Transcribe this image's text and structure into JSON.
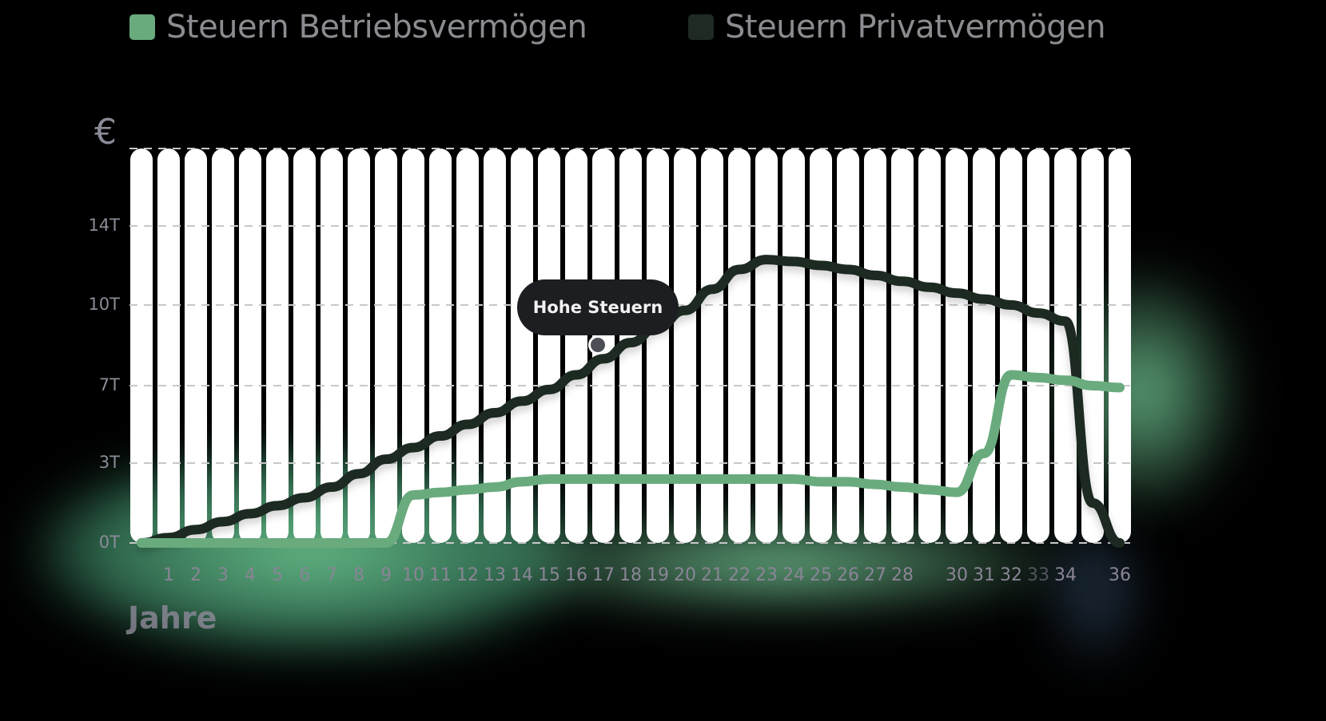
{
  "legend": {
    "items": [
      {
        "label": "Steuern Betriebsvermögen",
        "color": "#6aab7e"
      },
      {
        "label": "Steuern Privatvermögen",
        "color": "#1f2a22"
      }
    ]
  },
  "axis": {
    "y_unit": "€",
    "y_ticks": [
      "14T",
      "10T",
      "7T",
      "3T",
      "0T"
    ],
    "x_title": "Jahre",
    "x_ticks": [
      "1",
      "2",
      "3",
      "4",
      "5",
      "6",
      "7",
      "8",
      "9",
      "10",
      "11",
      "12",
      "13",
      "14",
      "15",
      "16",
      "17",
      "18",
      "19",
      "20",
      "21",
      "22",
      "23",
      "24",
      "25",
      "26",
      "27",
      "28",
      "",
      "30",
      "31",
      "32",
      "33",
      "34",
      "",
      "36"
    ]
  },
  "tooltip": {
    "label": "Hohe Steuern",
    "year": 17
  },
  "chart_data": {
    "type": "line",
    "title": "",
    "xlabel": "Jahre",
    "ylabel": "€",
    "legend_position": "top",
    "grid": true,
    "ylim": [
      0,
      17
    ],
    "y_tick_values": [
      0,
      3,
      7,
      10,
      14
    ],
    "y_tick_labels": [
      "0T",
      "3T",
      "7T",
      "10T",
      "14T"
    ],
    "x": [
      0,
      1,
      2,
      3,
      4,
      5,
      6,
      7,
      8,
      9,
      10,
      11,
      12,
      13,
      14,
      15,
      16,
      17,
      18,
      19,
      20,
      21,
      22,
      23,
      24,
      25,
      26,
      27,
      28,
      29,
      30,
      31,
      32,
      33,
      34,
      35,
      36
    ],
    "series": [
      {
        "name": "Steuern Betriebsvermögen",
        "color": "#6aab7e",
        "values": [
          0,
          0,
          0,
          0,
          0,
          0,
          0,
          0,
          0,
          0,
          1.8,
          1.9,
          2.0,
          2.1,
          2.3,
          2.4,
          2.4,
          2.4,
          2.4,
          2.4,
          2.4,
          2.4,
          2.4,
          2.4,
          2.4,
          2.3,
          2.3,
          2.2,
          2.1,
          2.0,
          1.9,
          3.5,
          7.4,
          7.3,
          7.2,
          7.0,
          6.9
        ]
      },
      {
        "name": "Steuern Privatvermögen",
        "color": "#1f2a22",
        "values": [
          0,
          0.2,
          0.5,
          0.8,
          1.1,
          1.4,
          1.7,
          2.1,
          2.6,
          3.2,
          3.8,
          4.4,
          5.0,
          5.6,
          6.2,
          6.8,
          7.4,
          8.0,
          8.6,
          9.2,
          9.8,
          10.8,
          11.8,
          12.3,
          12.2,
          12.0,
          11.8,
          11.5,
          11.2,
          10.9,
          10.6,
          10.3,
          10.0,
          9.7,
          9.4,
          1.5,
          0
        ]
      }
    ],
    "annotations": [
      {
        "x": 17,
        "y": 8.0,
        "text": "Hohe Steuern"
      }
    ]
  }
}
